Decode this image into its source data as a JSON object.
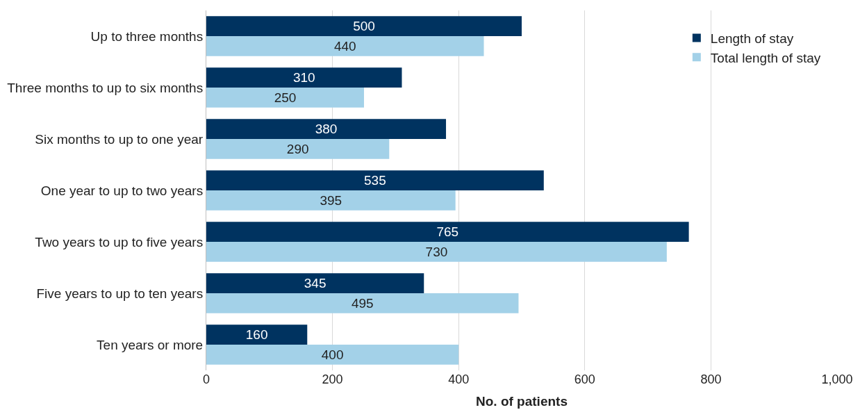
{
  "chart_data": {
    "type": "bar",
    "orientation": "horizontal",
    "xlabel": "No. of patients",
    "categories": [
      "Up to three months",
      "Three months to up to six months",
      "Six months to up to one year",
      "One year to up to two years",
      "Two years to up to five years",
      "Five years to up to ten years",
      "Ten years or more"
    ],
    "series": [
      {
        "name": "Length of stay",
        "color": "#003360",
        "values": [
          500,
          310,
          380,
          535,
          765,
          345,
          160
        ]
      },
      {
        "name": "Total length of stay",
        "color": "#a3d1e8",
        "values": [
          440,
          250,
          290,
          395,
          730,
          495,
          400
        ]
      }
    ],
    "xlim": [
      0,
      1000
    ],
    "xticks": [
      0,
      200,
      400,
      600,
      800,
      {
        "value": 1000,
        "label": "1,000"
      }
    ],
    "grid": "x",
    "legend": "top right",
    "data_labels": true
  }
}
